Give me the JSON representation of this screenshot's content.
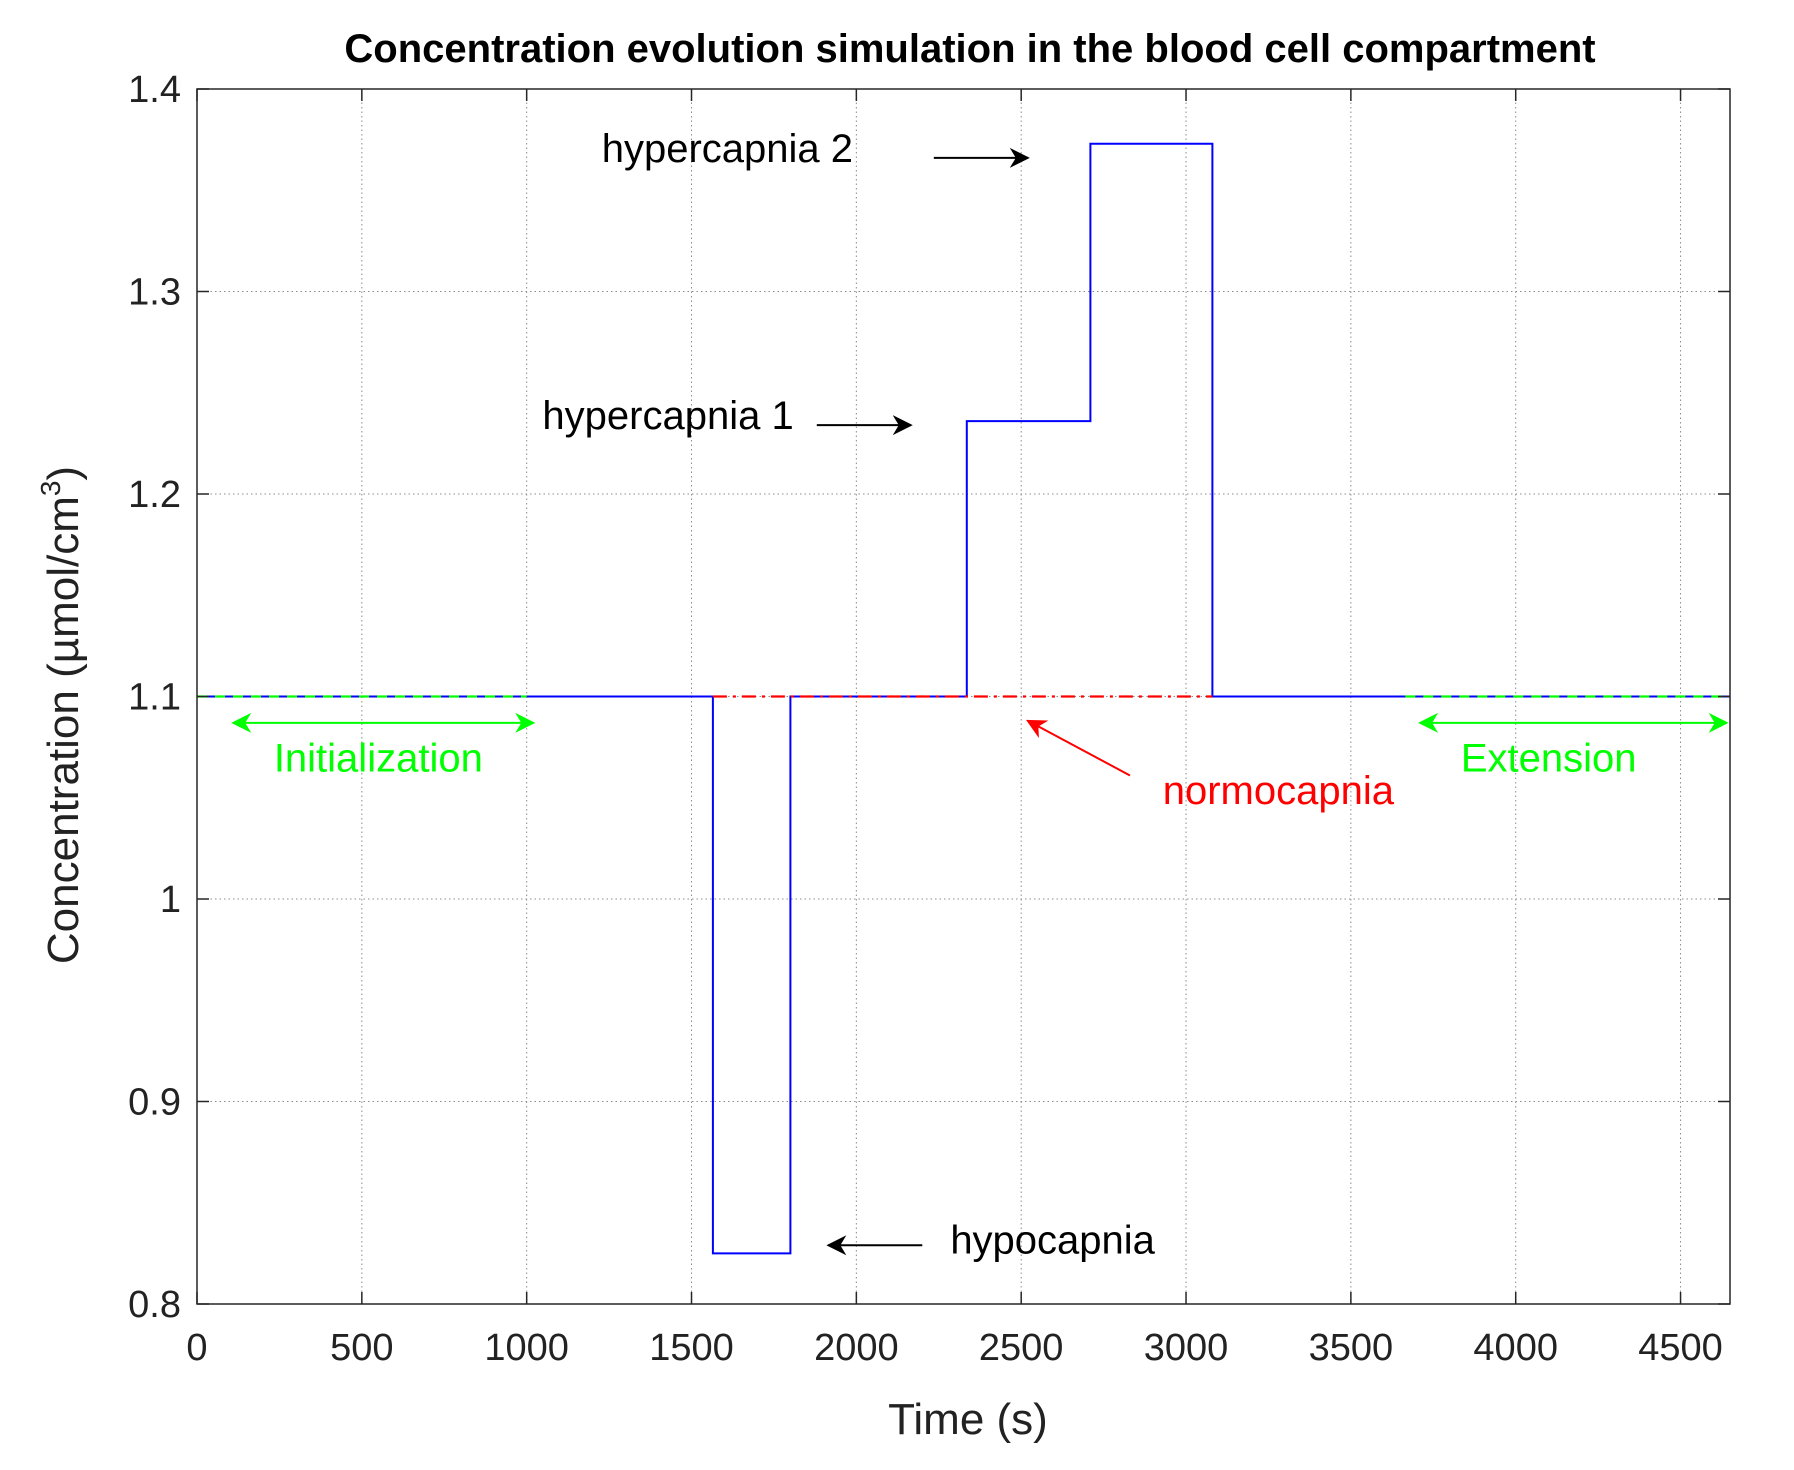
{
  "chart_data": {
    "type": "line",
    "title": "Concentration evolution simulation in the blood cell compartment",
    "xlabel": "Time (s)",
    "ylabel_main": "Concentration (µmol/cm",
    "ylabel_sup": "3",
    "ylabel_close": ")",
    "xlim": [
      0,
      4650
    ],
    "ylim": [
      0.8,
      1.4
    ],
    "xticks": [
      0,
      500,
      1000,
      1500,
      2000,
      2500,
      3000,
      3500,
      4000,
      4500
    ],
    "xtick_labels": [
      "0",
      "500",
      "1000",
      "1500",
      "2000",
      "2500",
      "3000",
      "3500",
      "4000",
      "4500"
    ],
    "yticks": [
      0.8,
      0.9,
      1.0,
      1.1,
      1.2,
      1.3,
      1.4
    ],
    "ytick_labels": [
      "0.8",
      "0.9",
      "1",
      "1.1",
      "1.2",
      "1.3",
      "1.4"
    ],
    "grid": true,
    "series": [
      {
        "name": "simulation",
        "color": "#0000ff",
        "style": "solid",
        "x": [
          0,
          1565,
          1565,
          1800,
          1800,
          2335,
          2335,
          2710,
          2710,
          3080,
          3080,
          4650
        ],
        "y": [
          1.1,
          1.1,
          0.825,
          0.825,
          1.1,
          1.1,
          1.236,
          1.236,
          1.373,
          1.373,
          1.1,
          1.1
        ]
      },
      {
        "name": "normocapnia",
        "color": "#ff0000",
        "style": "dashdot",
        "x": [
          1565,
          3080
        ],
        "y": [
          1.1,
          1.1
        ]
      },
      {
        "name": "initialization",
        "color": "#00ff00",
        "style": "dashed",
        "x": [
          0,
          1000
        ],
        "y": [
          1.1,
          1.1
        ]
      },
      {
        "name": "extension",
        "color": "#00ff00",
        "style": "dashed",
        "x": [
          3665,
          4650
        ],
        "y": [
          1.1,
          1.1
        ]
      }
    ],
    "annotations": [
      {
        "text": "hypercapnia 2",
        "color": "#000000",
        "anchor": "end",
        "tx": 1990,
        "ty": 1.364,
        "ax1": 2235,
        "ay1": 1.366,
        "ax2": 2520,
        "ay2": 1.366
      },
      {
        "text": "hypercapnia 1",
        "color": "#000000",
        "anchor": "end",
        "tx": 1810,
        "ty": 1.232,
        "ax1": 1880,
        "ay1": 1.234,
        "ax2": 2165,
        "ay2": 1.234
      },
      {
        "text": "hypocapnia",
        "color": "#000000",
        "anchor": "start",
        "tx": 2285,
        "ty": 0.825,
        "ax1": 2200,
        "ay1": 0.829,
        "ax2": 1915,
        "ay2": 0.829
      },
      {
        "text": "normocapnia",
        "color": "#ff0000",
        "anchor": "middle",
        "tx": 3280,
        "ty": 1.047,
        "ax1": 2830,
        "ay1": 1.061,
        "ax2": 2520,
        "ay2": 1.088
      },
      {
        "text": "Initialization",
        "color": "#00ff00",
        "anchor": "middle",
        "tx": 550,
        "ty": 1.063,
        "ax1": 110,
        "ay1": 1.087,
        "ax2": 1020,
        "ay2": 1.087,
        "double": true
      },
      {
        "text": "Extension",
        "color": "#00ff00",
        "anchor": "middle",
        "tx": 4100,
        "ty": 1.063,
        "ax1": 3710,
        "ay1": 1.087,
        "ax2": 4640,
        "ay2": 1.087,
        "double": true
      }
    ]
  }
}
